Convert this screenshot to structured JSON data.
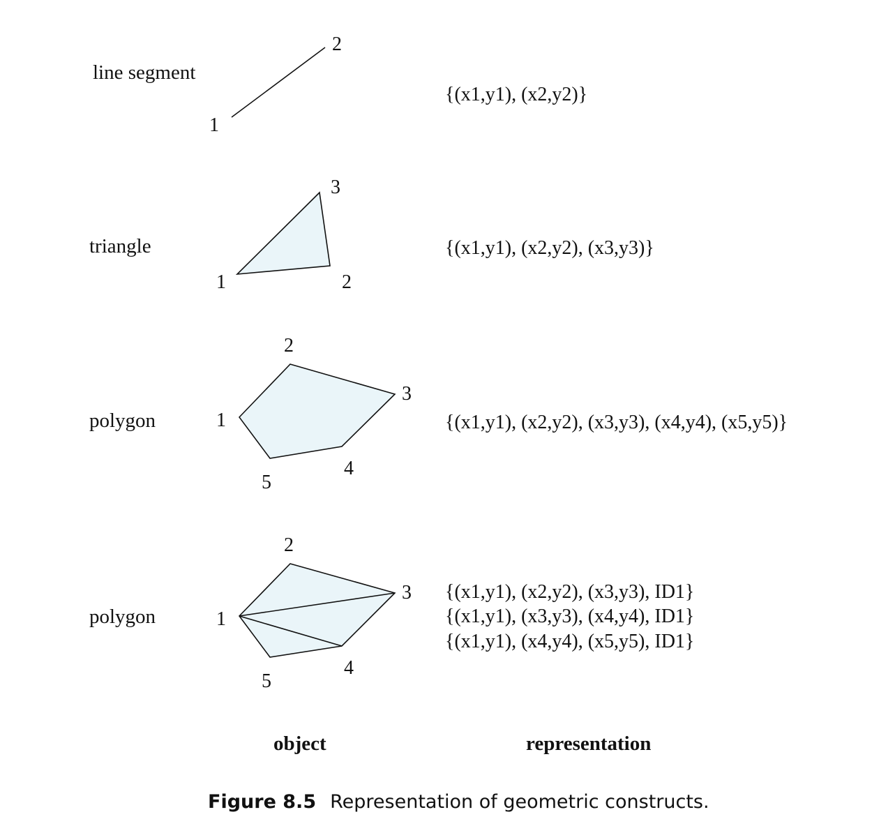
{
  "rows": [
    {
      "label": "line segment",
      "vertex_labels": [
        "1",
        "2"
      ],
      "representation": [
        "{(x1,y1), (x2,y2)}"
      ]
    },
    {
      "label": "triangle",
      "vertex_labels": [
        "1",
        "2",
        "3"
      ],
      "representation": [
        "{(x1,y1), (x2,y2), (x3,y3)}"
      ]
    },
    {
      "label": "polygon",
      "vertex_labels": [
        "1",
        "2",
        "3",
        "4",
        "5"
      ],
      "representation": [
        "{(x1,y1), (x2,y2), (x3,y3), (x4,y4), (x5,y5)}"
      ]
    },
    {
      "label": "polygon",
      "vertex_labels": [
        "1",
        "2",
        "3",
        "4",
        "5"
      ],
      "representation": [
        "{(x1,y1), (x2,y2), (x3,y3), ID1}",
        "{(x1,y1), (x3,y3), (x4,y4), ID1}",
        "{(x1,y1), (x4,y4), (x5,y5), ID1}"
      ]
    }
  ],
  "column_headers": {
    "object": "object",
    "representation": "representation"
  },
  "caption": {
    "number": "Figure 8.5",
    "text": "Representation of geometric constructs."
  },
  "colors": {
    "shape_fill": "#eaf5f9",
    "stroke": "#111111"
  }
}
